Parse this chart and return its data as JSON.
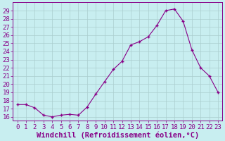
{
  "hours": [
    0,
    1,
    2,
    3,
    4,
    5,
    6,
    7,
    8,
    9,
    10,
    11,
    12,
    13,
    14,
    15,
    16,
    17,
    18,
    19,
    20,
    21,
    22,
    23
  ],
  "values": [
    17.5,
    17.5,
    17.1,
    16.2,
    16.0,
    16.2,
    16.3,
    16.2,
    17.2,
    18.8,
    20.3,
    21.8,
    22.8,
    24.8,
    25.2,
    25.8,
    27.2,
    29.0,
    29.2,
    27.7,
    24.2,
    22.0,
    21.0,
    19.0
  ],
  "line_color": "#880088",
  "marker": "+",
  "bg_color": "#c8eef0",
  "grid_color": "#aacece",
  "ylabel_values": [
    16,
    17,
    18,
    19,
    20,
    21,
    22,
    23,
    24,
    25,
    26,
    27,
    28,
    29
  ],
  "ylim": [
    15.5,
    30.0
  ],
  "xlim": [
    -0.5,
    23.5
  ],
  "xlabel": "Windchill (Refroidissement éolien,°C)",
  "tick_fontsize": 6.5,
  "label_fontsize": 7.5
}
